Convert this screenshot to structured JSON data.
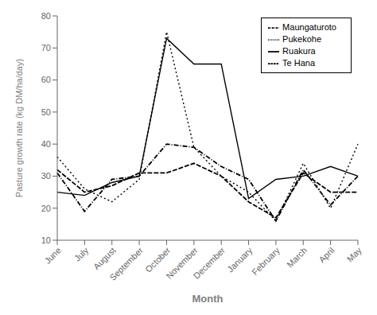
{
  "chart_data": {
    "type": "line",
    "categories": [
      "June",
      "July",
      "August",
      "September",
      "October",
      "November",
      "December",
      "January",
      "February",
      "March",
      "April",
      "May"
    ],
    "series": [
      {
        "name": "Ruakura",
        "color": "#000000",
        "line_style": "solid",
        "values": [
          25,
          24,
          28,
          30,
          73,
          65,
          65,
          23,
          29,
          30,
          33,
          30
        ]
      },
      {
        "name": "Pukekohe",
        "color": "#000000",
        "line_style": "dotted",
        "values": [
          36,
          26,
          22,
          29,
          75,
          39,
          30,
          25,
          16,
          34,
          20,
          40
        ]
      },
      {
        "name": "Te Hana",
        "color": "#000000",
        "line_style": "dashed",
        "values": [
          32,
          25,
          27,
          31,
          31,
          34,
          30,
          22,
          17,
          31,
          25,
          25
        ]
      },
      {
        "name": "Maungaturoto",
        "color": "#000000",
        "line_style": "dashdot",
        "values": [
          31,
          19,
          29,
          30,
          40,
          39,
          33,
          29,
          16,
          32,
          21,
          30
        ]
      }
    ],
    "xlabel": "Month",
    "ylabel": "Pasture growth rate (kg DM/ha/day)",
    "ylim": [
      10,
      80
    ],
    "yticks": [
      10,
      20,
      30,
      40,
      50,
      60,
      70,
      80
    ],
    "grid": false,
    "legend": "upper right"
  }
}
